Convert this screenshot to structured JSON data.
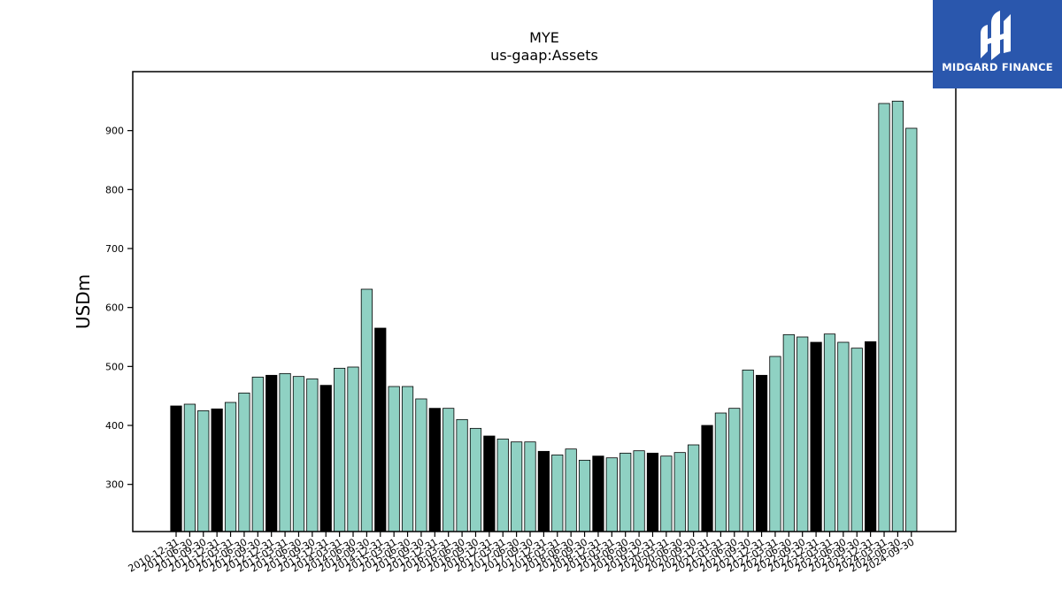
{
  "chart_data": {
    "type": "bar",
    "title": "MYE",
    "subtitle": "us-gaap:Assets",
    "xlabel": "",
    "ylabel": "USDm",
    "ylim": [
      220,
      1000
    ],
    "yticks": [
      300,
      400,
      500,
      600,
      700,
      800,
      900
    ],
    "grid": false,
    "legend": "none",
    "colors": {
      "quarter": "#8fd1c3",
      "year_end": "#000000",
      "edge": "#000000"
    },
    "categories": [
      "2010-12-31",
      "2011-06-30",
      "2011-09-30",
      "2011-12-31",
      "2012-03-31",
      "2012-06-30",
      "2012-09-30",
      "2012-12-31",
      "2013-03-31",
      "2013-06-30",
      "2013-09-30",
      "2013-12-31",
      "2014-03-31",
      "2014-06-30",
      "2014-09-30",
      "2014-12-31",
      "2015-03-31",
      "2015-06-30",
      "2015-09-30",
      "2015-12-31",
      "2016-03-31",
      "2016-06-30",
      "2016-09-30",
      "2016-12-31",
      "2017-03-31",
      "2017-06-30",
      "2017-09-30",
      "2017-12-31",
      "2018-03-31",
      "2018-06-30",
      "2018-09-30",
      "2018-12-31",
      "2019-03-31",
      "2019-06-30",
      "2019-09-30",
      "2019-12-31",
      "2020-03-31",
      "2020-06-30",
      "2020-09-30",
      "2020-12-31",
      "2021-03-31",
      "2021-06-30",
      "2021-09-30",
      "2021-12-31",
      "2022-03-31",
      "2022-06-30",
      "2022-09-30",
      "2022-12-31",
      "2023-03-31",
      "2023-06-30",
      "2023-09-30",
      "2023-12-31",
      "2024-03-31",
      "2024-06-30",
      "2024-09-30"
    ],
    "values": [
      433,
      436,
      425,
      428,
      439,
      455,
      482,
      485,
      488,
      483,
      479,
      468,
      497,
      499,
      631,
      565,
      466,
      466,
      445,
      429,
      429,
      410,
      395,
      382,
      377,
      372,
      372,
      356,
      350,
      360,
      341,
      348,
      345,
      353,
      357,
      353,
      348,
      354,
      367,
      400,
      421,
      429,
      494,
      485,
      517,
      554,
      550,
      541,
      555,
      541,
      531,
      542,
      946,
      950,
      904
    ],
    "year_end": [
      true,
      false,
      false,
      true,
      false,
      false,
      false,
      true,
      false,
      false,
      false,
      true,
      false,
      false,
      false,
      true,
      false,
      false,
      false,
      true,
      false,
      false,
      false,
      true,
      false,
      false,
      false,
      true,
      false,
      false,
      false,
      true,
      false,
      false,
      false,
      true,
      false,
      false,
      false,
      true,
      false,
      false,
      false,
      true,
      false,
      false,
      false,
      true,
      false,
      false,
      false,
      true,
      false,
      false,
      false
    ]
  },
  "logo": {
    "text": "MIDGARD FINANCE",
    "background": "#2a57ad"
  }
}
